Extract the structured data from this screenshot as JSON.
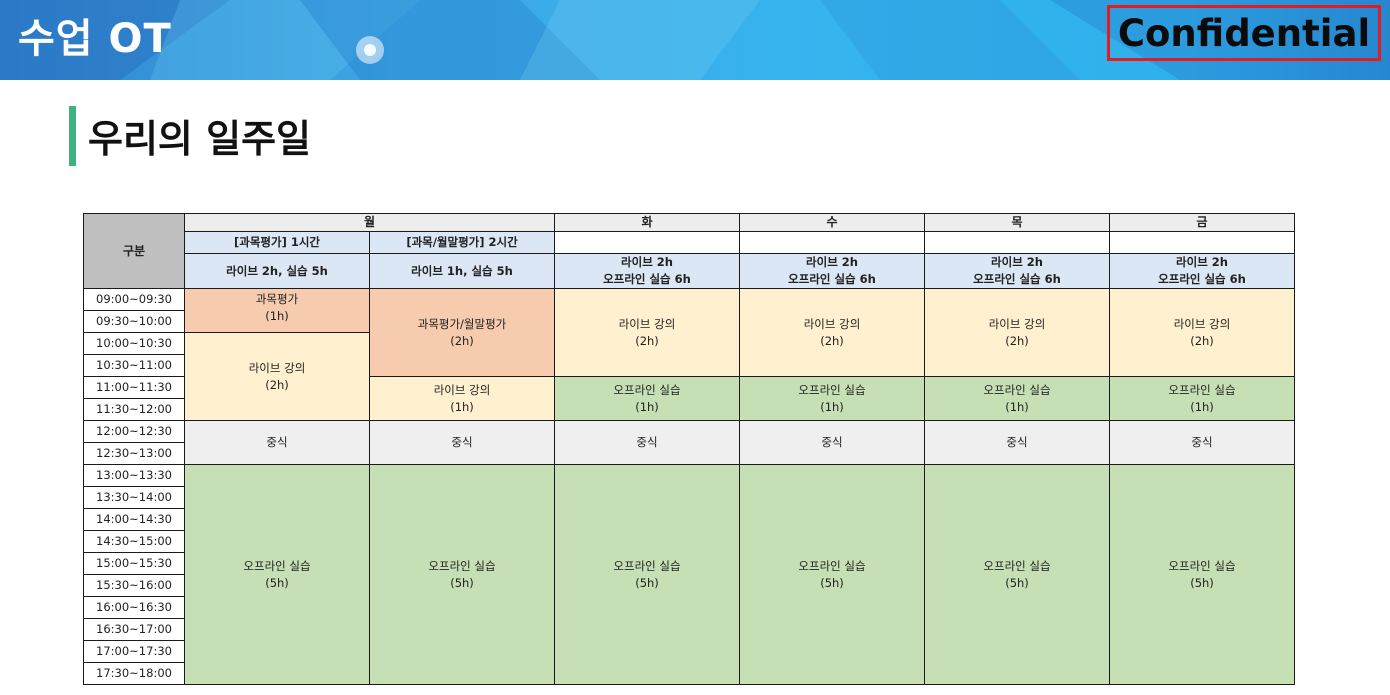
{
  "banner": {
    "title": "수업 OT",
    "confidential": "Confidential"
  },
  "page": {
    "heading": "우리의 일주일"
  },
  "schedule": {
    "corner_label": "구분",
    "days": [
      "월",
      "화",
      "수",
      "목",
      "금"
    ],
    "monday": {
      "col1_sub": "[과목평가] 1시간",
      "col2_sub": "[과목/월말평가] 2시간",
      "col1_summary": "라이브 2h, 실습 5h",
      "col2_summary": "라이브 1h, 실습 5h"
    },
    "weekday_summary_line1": "라이브 2h",
    "weekday_summary_line2": "오프라인 실습 6h",
    "times": [
      "09:00~09:30",
      "09:30~10:00",
      "10:00~10:30",
      "10:30~11:00",
      "11:00~11:30",
      "11:30~12:00",
      "12:00~12:30",
      "12:30~13:00",
      "13:00~13:30",
      "13:30~14:00",
      "14:00~14:30",
      "14:30~15:00",
      "15:00~15:30",
      "15:30~16:00",
      "16:00~16:30",
      "16:30~17:00",
      "17:00~17:30",
      "17:30~18:00"
    ],
    "blocks": {
      "eval1_title": "과목평가",
      "eval1_dur": "(1h)",
      "eval2_title": "과목평가/월말평가",
      "eval2_dur": "(2h)",
      "live_title": "라이브 강의",
      "live2h": "(2h)",
      "live1h": "(1h)",
      "offline_title": "오프라인 실습",
      "off1h": "(1h)",
      "off5h": "(5h)",
      "lunch": "중식"
    }
  },
  "colors": {
    "evaluation": "#f7cbad",
    "live": "#fff0cf",
    "offline": "#c6dfb4",
    "lunch": "#efefef",
    "header_blue": "#dbe7f5",
    "confidential_border": "#e31b23",
    "heading_accent": "#3fb37f"
  }
}
